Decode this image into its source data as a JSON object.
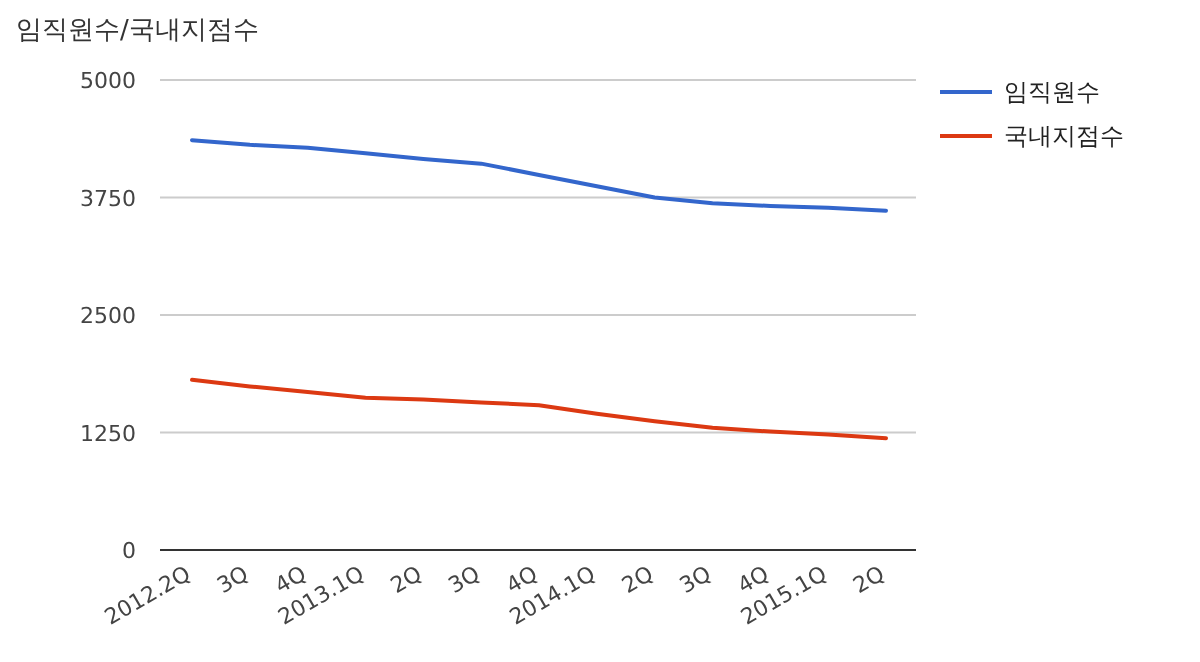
{
  "chart_data": {
    "type": "line",
    "title": "임직원수/국내지점수",
    "categories": [
      "2012.2Q",
      "3Q",
      "4Q",
      "2013.1Q",
      "2Q",
      "3Q",
      "4Q",
      "2014.1Q",
      "2Q",
      "3Q",
      "4Q",
      "2015.1Q",
      "2Q"
    ],
    "series": [
      {
        "name": "임직원수",
        "color": "#3366cc",
        "values": [
          4360,
          4310,
          4280,
          4220,
          4160,
          4110,
          3990,
          3870,
          3750,
          3690,
          3660,
          3640,
          3610
        ]
      },
      {
        "name": "국내지점수",
        "color": "#dc3912",
        "values": [
          1810,
          1740,
          1680,
          1620,
          1600,
          1570,
          1540,
          1450,
          1370,
          1300,
          1260,
          1230,
          1190
        ]
      }
    ],
    "ylim": [
      0,
      5000
    ],
    "yticks": [
      0,
      1250,
      2500,
      3750,
      5000
    ],
    "grid": "y",
    "legend": "top right",
    "marker": "none",
    "line_style": "solid"
  }
}
